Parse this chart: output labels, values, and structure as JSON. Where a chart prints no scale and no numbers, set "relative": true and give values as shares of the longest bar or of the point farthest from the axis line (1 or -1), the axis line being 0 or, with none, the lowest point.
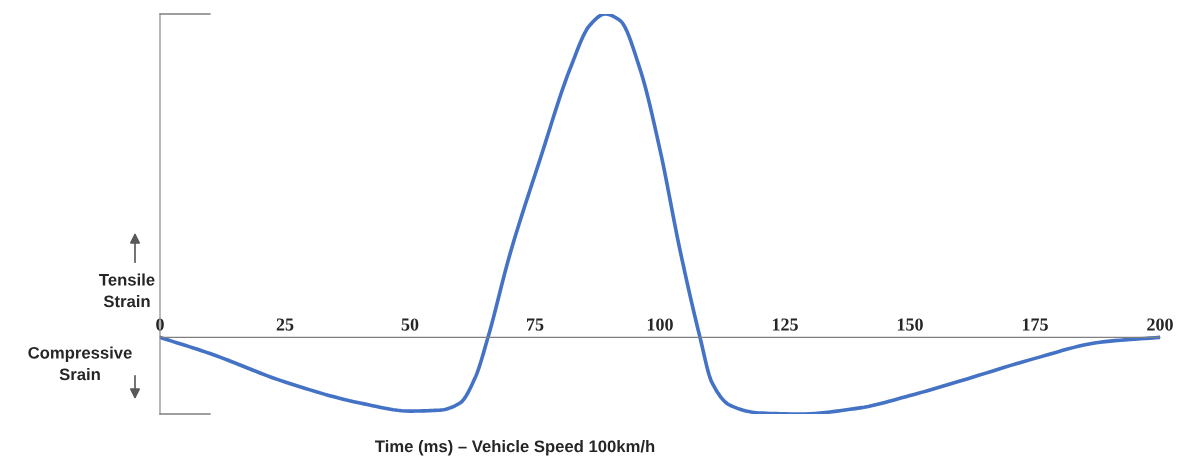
{
  "chart_data": {
    "type": "line",
    "relative": true,
    "xlabel": "Time (ms) – Vehicle Speed 100km/h",
    "x": [
      0,
      10,
      25,
      40,
      50,
      56,
      60,
      63,
      65.6,
      70,
      76,
      82,
      86,
      89,
      92,
      96,
      100,
      104,
      108,
      110.4,
      114,
      120,
      128,
      140,
      150,
      160,
      175,
      188,
      200
    ],
    "series": [
      {
        "color": "#4472c4",
        "values": [
          0,
          -0.05,
          -0.138,
          -0.203,
          -0.228,
          -0.225,
          -0.203,
          -0.126,
          0,
          0.258,
          0.55,
          0.83,
          0.966,
          1.0,
          0.98,
          0.83,
          0.58,
          0.27,
          0,
          -0.14,
          -0.21,
          -0.234,
          -0.237,
          -0.218,
          -0.18,
          -0.135,
          -0.065,
          -0.015,
          0
        ]
      }
    ],
    "xlim": [
      0,
      200
    ],
    "xticks": [
      0,
      25,
      50,
      75,
      100,
      125,
      150,
      175,
      200
    ],
    "annotations": [
      "Tensile\nStrain",
      "Compressive\nSrain"
    ],
    "grid": false,
    "legend": false,
    "marker": "none",
    "line_style": "solid"
  }
}
